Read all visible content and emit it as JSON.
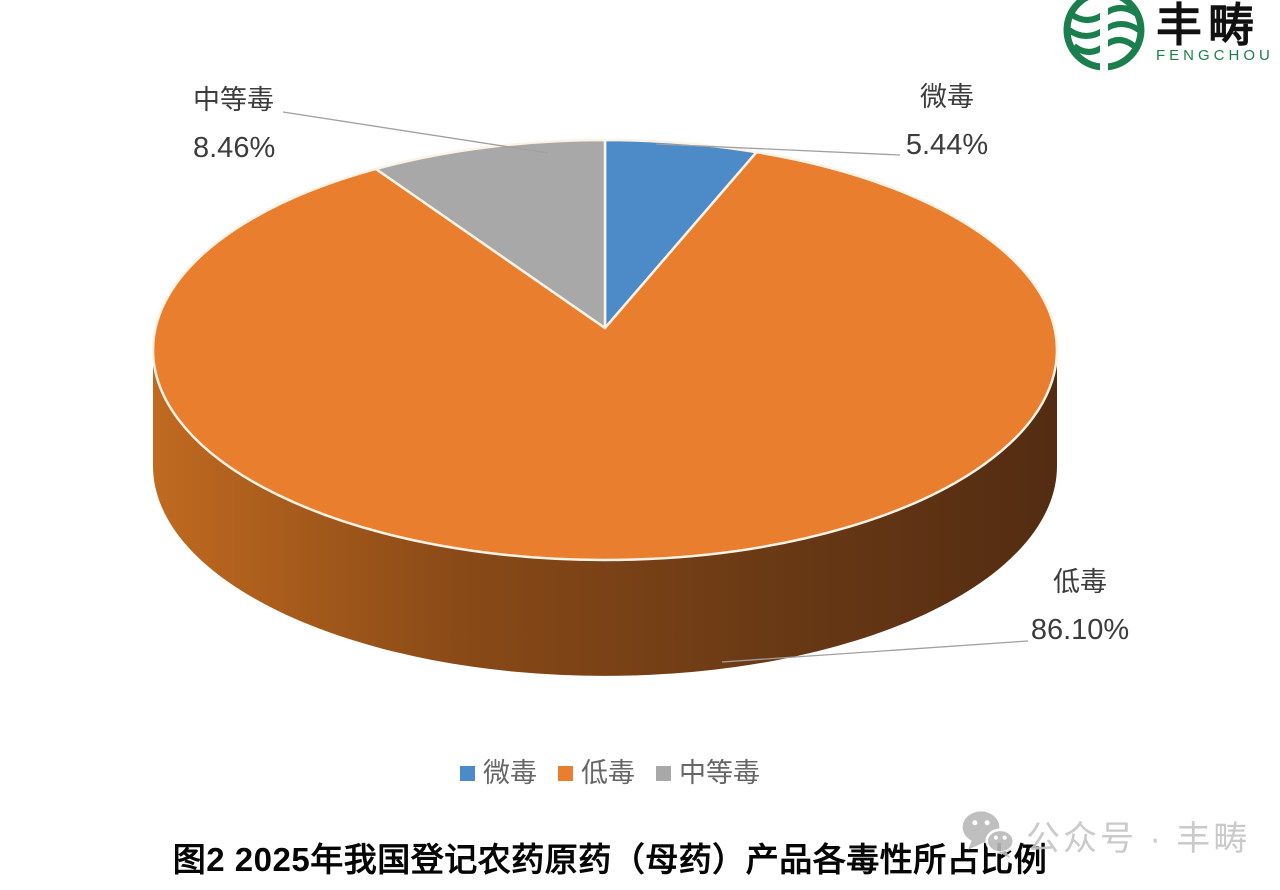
{
  "logo": {
    "name": "丰畴",
    "subtitle": "FENGCHOU",
    "brand_color": "#1b7f4d"
  },
  "chart_data": {
    "type": "pie",
    "style": "3d",
    "title": "图2 2025年我国登记农药原药（母药）产品各毒性所占比例",
    "unit": "%",
    "start_angle_deg": 0,
    "direction": "clockwise",
    "slices": [
      {
        "label": "微毒",
        "value": 5.44,
        "pct_label": "5.44%",
        "color": "#4c8bc8"
      },
      {
        "label": "低毒",
        "value": 86.1,
        "pct_label": "86.10%",
        "color": "#e87e2e"
      },
      {
        "label": "中等毒",
        "value": 8.46,
        "pct_label": "8.46%",
        "color": "#a8a8a8"
      }
    ],
    "side_gradient": [
      "#c06a20",
      "#8a4a17",
      "#6b3a15",
      "#532c12"
    ],
    "separator_color": "#fcf3e6",
    "leader_line_color": "#a0a0a0",
    "legend_position": "bottom",
    "background": "#ffffff"
  },
  "watermark": {
    "text": "公众号 · 丰畴"
  }
}
